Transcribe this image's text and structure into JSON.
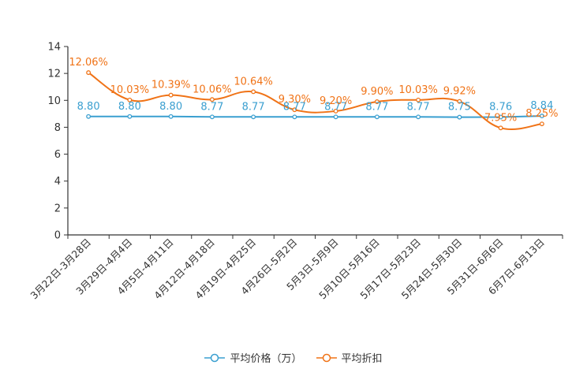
{
  "chart_data": {
    "type": "line",
    "title": "",
    "xlabel": "",
    "ylabel": "",
    "ylim": [
      0,
      14
    ],
    "yticks": [
      0,
      2,
      4,
      6,
      8,
      10,
      12,
      14
    ],
    "categories": [
      "3月22日-3月28日",
      "3月29日-4月4日",
      "4月5日-4月11日",
      "4月12日-4月18日",
      "4月19日-4月25日",
      "4月26日-5月2日",
      "5月3日-5月9日",
      "5月10日-5月16日",
      "5月17日-5月23日",
      "5月24日-5月30日",
      "5月31日-6月6日",
      "6月7日-6月13日"
    ],
    "series": [
      {
        "name": "平均价格（万）",
        "color": "#3a9fd0",
        "smooth": false,
        "values": [
          8.8,
          8.8,
          8.8,
          8.77,
          8.77,
          8.77,
          8.77,
          8.77,
          8.77,
          8.75,
          8.76,
          8.84
        ],
        "labels": [
          "8.80",
          "8.80",
          "8.80",
          "8.77",
          "8.77",
          "8.77",
          "8.77",
          "8.77",
          "8.77",
          "8.75",
          "8.76",
          "8.84"
        ]
      },
      {
        "name": "平均折扣",
        "color": "#f07317",
        "smooth": true,
        "values": [
          12.06,
          10.03,
          10.39,
          10.06,
          10.64,
          9.3,
          9.2,
          9.9,
          10.03,
          9.92,
          7.95,
          8.25
        ],
        "labels": [
          "12.06%",
          "10.03%",
          "10.39%",
          "10.06%",
          "10.64%",
          "9.30%",
          "9.20%",
          "9.90%",
          "10.03%",
          "9.92%",
          "7.95%",
          "8.25%"
        ]
      }
    ],
    "legend_position": "bottom-center"
  },
  "legend": {
    "items": [
      "平均价格（万）",
      "平均折扣"
    ]
  }
}
